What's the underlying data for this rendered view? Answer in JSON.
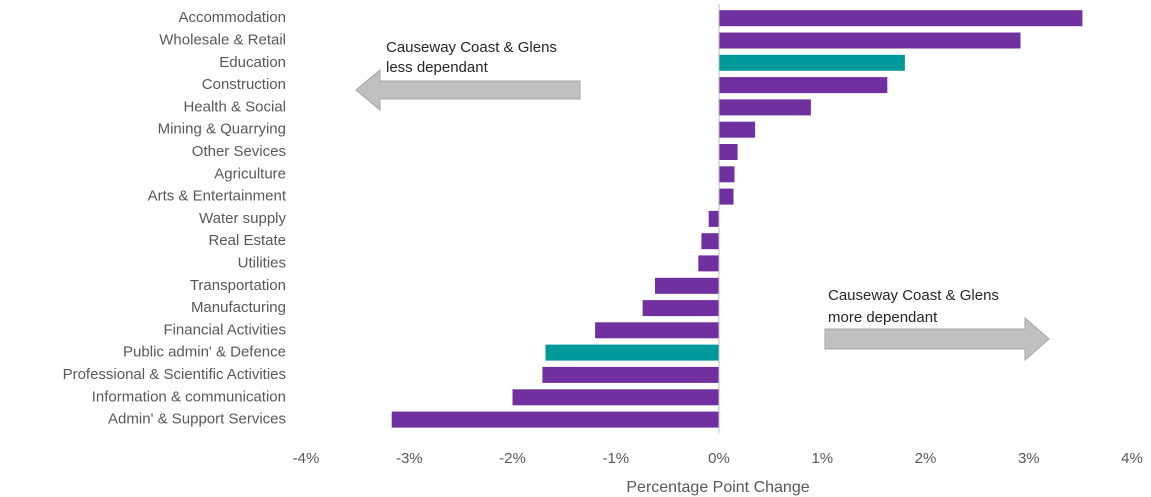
{
  "chart_data": {
    "type": "bar",
    "orientation": "horizontal",
    "categories": [
      "Accommodation",
      "Wholesale & Retail",
      "Education",
      "Construction",
      "Health & Social",
      "Mining & Quarrying",
      "Other Sevices",
      "Agriculture",
      "Arts & Entertainment",
      "Water supply",
      "Real Estate",
      "Utilities",
      "Transportation",
      "Manufacturing",
      "Financial Activities",
      "Public admin' & Defence",
      "Professional & Scientific Activities",
      "Information & communication",
      "Admin' & Support Services"
    ],
    "values": [
      3.52,
      2.92,
      1.8,
      1.63,
      0.89,
      0.35,
      0.18,
      0.15,
      0.14,
      -0.1,
      -0.17,
      -0.2,
      -0.62,
      -0.74,
      -1.2,
      -1.68,
      -1.71,
      -2.0,
      -3.17
    ],
    "bar_colors": [
      "#7030a0",
      "#7030a0",
      "#009999",
      "#7030a0",
      "#7030a0",
      "#7030a0",
      "#7030a0",
      "#7030a0",
      "#7030a0",
      "#7030a0",
      "#7030a0",
      "#7030a0",
      "#7030a0",
      "#7030a0",
      "#7030a0",
      "#009999",
      "#7030a0",
      "#7030a0",
      "#7030a0"
    ],
    "xlim": [
      -4,
      4
    ],
    "xticks": [
      -4,
      -3,
      -2,
      -1,
      0,
      1,
      2,
      3,
      4
    ],
    "xtick_labels": [
      "-4%",
      "-3%",
      "-2%",
      "-1%",
      "0%",
      "1%",
      "2%",
      "3%",
      "4%"
    ],
    "xlabel": "Percentage Point Change",
    "ylabel": "",
    "title": "",
    "grid": false,
    "legend": "none",
    "annotations": [
      {
        "id": "less",
        "lines": [
          "Causeway Coast & Glens",
          "less dependant"
        ],
        "arrow_direction": "left"
      },
      {
        "id": "more",
        "lines": [
          "Causeway Coast & Glens",
          "more dependant"
        ],
        "arrow_direction": "right"
      }
    ],
    "colors": {
      "primary": "#7030a0",
      "highlight": "#009999",
      "arrow_fill": "#c0c0c0",
      "arrow_stroke": "#a6a6a6",
      "axis": "#bfbfbf"
    }
  }
}
